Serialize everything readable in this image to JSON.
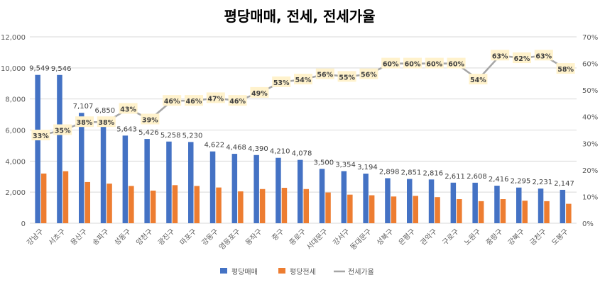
{
  "chart_data": {
    "type": "bar",
    "title": "평당매매, 전세, 전세가율",
    "categories": [
      "강남구",
      "서초구",
      "용산구",
      "송파구",
      "성동구",
      "양천구",
      "광진구",
      "마포구",
      "강동구",
      "영등포구",
      "동작구",
      "중구",
      "종로구",
      "서대문구",
      "강서구",
      "동대문구",
      "성북구",
      "은평구",
      "관악구",
      "구로구",
      "노원구",
      "중랑구",
      "강북구",
      "금천구",
      "도봉구"
    ],
    "series": [
      {
        "name": "평당매매",
        "type": "bar",
        "axis": "left",
        "color": "#4472C4",
        "values": [
          9549,
          9546,
          7107,
          6850,
          5643,
          5426,
          5258,
          5230,
          4622,
          4468,
          4390,
          4210,
          4078,
          3500,
          3354,
          3194,
          2898,
          2851,
          2816,
          2611,
          2608,
          2416,
          2295,
          2231,
          2147
        ]
      },
      {
        "name": "평당전세",
        "type": "bar",
        "axis": "left",
        "color": "#ED7D31",
        "values": [
          3200,
          3350,
          2650,
          2550,
          2400,
          2100,
          2450,
          2400,
          2300,
          2050,
          2200,
          2280,
          2200,
          1980,
          1840,
          1800,
          1720,
          1760,
          1680,
          1550,
          1420,
          1550,
          1450,
          1420,
          1250
        ]
      },
      {
        "name": "전세가율",
        "type": "line",
        "axis": "right",
        "color": "#A5A5A5",
        "values": [
          33,
          35,
          38,
          38,
          43,
          39,
          46,
          46,
          47,
          46,
          49,
          53,
          54,
          56,
          55,
          56,
          60,
          60,
          60,
          60,
          54,
          63,
          62,
          63,
          58
        ]
      }
    ],
    "left_axis": {
      "min": 0,
      "max": 12000,
      "ticks": [
        "0",
        "2,000",
        "4,000",
        "6,000",
        "8,000",
        "10,000",
        "12,000"
      ]
    },
    "right_axis": {
      "min": 0,
      "max": 70,
      "ticks": [
        "0%",
        "10%",
        "20%",
        "30%",
        "40%",
        "50%",
        "60%",
        "70%"
      ]
    },
    "grid": true,
    "legend": "bottom"
  }
}
